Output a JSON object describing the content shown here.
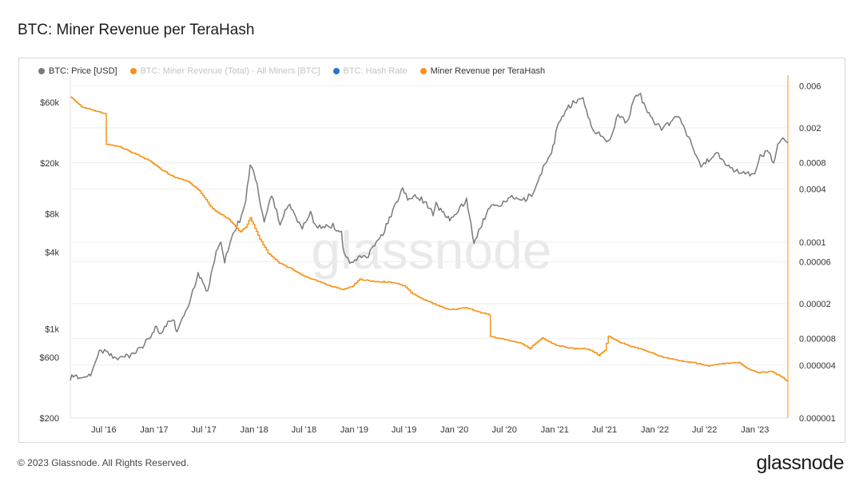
{
  "title": "BTC: Miner Revenue per TeraHash",
  "footer": "© 2023 Glassnode. All Rights Reserved.",
  "brand": "glassnode",
  "watermark": "glassnode",
  "colors": {
    "price": "#7a7a7a",
    "revenue_total": "#f7931a",
    "hash_rate": "#1f77d0",
    "revenue_per_th": "#f7931a",
    "grid": "#eeeeee",
    "right_axis": "#f7931a"
  },
  "legend": [
    {
      "label": "BTC: Price [USD]",
      "color": "#7a7a7a",
      "active": true
    },
    {
      "label": "BTC: Miner Revenue (Total) - All Miners [BTC]",
      "color": "#f7931a",
      "active": false
    },
    {
      "label": "BTC: Hash Rate",
      "color": "#1f77d0",
      "active": false
    },
    {
      "label": "Miner Revenue per TeraHash",
      "color": "#f7931a",
      "active": true
    }
  ],
  "chart_data": {
    "type": "line",
    "title": "BTC: Miner Revenue per TeraHash",
    "xlabel": "",
    "ylabel_left": "",
    "ylabel_right": "",
    "x_ticks": [
      "Jul '16",
      "Jan '17",
      "Jul '17",
      "Jan '18",
      "Jul '18",
      "Jan '19",
      "Jul '19",
      "Jan '20",
      "Jul '20",
      "Jan '21",
      "Jul '21",
      "Jan '22",
      "Jul '22",
      "Jan '23"
    ],
    "x_range": [
      "2016-03",
      "2023-05"
    ],
    "left_axis": {
      "scale": "log",
      "range": [
        200,
        90000
      ],
      "ticks": [
        200,
        600,
        1000,
        4000,
        8000,
        20000,
        60000
      ],
      "tick_labels": [
        "$200",
        "$600",
        "$1k",
        "$4k",
        "$8k",
        "$20k",
        "$60k"
      ]
    },
    "right_axis": {
      "scale": "log",
      "range": [
        1e-06,
        0.007
      ],
      "ticks": [
        1e-06,
        4e-06,
        8e-06,
        2e-05,
        6e-05,
        0.0001,
        0.0004,
        0.0008,
        0.002,
        0.006
      ],
      "tick_labels": [
        "0.000001",
        "0.000004",
        "0.000008",
        "0.00002",
        "0.00006",
        "0.0001",
        "0.0004",
        "0.0008",
        "0.002",
        "0.006"
      ]
    },
    "grid": true,
    "legend_position": "top-left",
    "series": [
      {
        "name": "BTC: Price [USD]",
        "axis": "left",
        "points": [
          [
            "2016-03-01",
            415
          ],
          [
            "2016-04-15",
            430
          ],
          [
            "2016-05-20",
            450
          ],
          [
            "2016-06-15",
            680
          ],
          [
            "2016-07-10",
            660
          ],
          [
            "2016-08-15",
            580
          ],
          [
            "2016-09-15",
            605
          ],
          [
            "2016-10-20",
            640
          ],
          [
            "2016-11-20",
            730
          ],
          [
            "2016-12-20",
            880
          ],
          [
            "2017-01-05",
            1050
          ],
          [
            "2017-01-20",
            910
          ],
          [
            "2017-02-20",
            1100
          ],
          [
            "2017-03-10",
            1220
          ],
          [
            "2017-03-25",
            950
          ],
          [
            "2017-04-20",
            1250
          ],
          [
            "2017-05-15",
            1800
          ],
          [
            "2017-06-10",
            2700
          ],
          [
            "2017-07-15",
            1950
          ],
          [
            "2017-08-15",
            4100
          ],
          [
            "2017-09-01",
            4800
          ],
          [
            "2017-09-15",
            3400
          ],
          [
            "2017-10-15",
            5700
          ],
          [
            "2017-11-15",
            7500
          ],
          [
            "2017-12-01",
            10500
          ],
          [
            "2017-12-17",
            19000
          ],
          [
            "2018-01-05",
            15500
          ],
          [
            "2018-02-06",
            7000
          ],
          [
            "2018-03-05",
            11000
          ],
          [
            "2018-04-05",
            6800
          ],
          [
            "2018-05-05",
            9600
          ],
          [
            "2018-06-25",
            6100
          ],
          [
            "2018-07-25",
            8200
          ],
          [
            "2018-08-15",
            6300
          ],
          [
            "2018-10-15",
            6500
          ],
          [
            "2018-11-15",
            5600
          ],
          [
            "2018-11-25",
            3800
          ],
          [
            "2018-12-15",
            3300
          ],
          [
            "2019-01-15",
            3600
          ],
          [
            "2019-02-15",
            3700
          ],
          [
            "2019-04-03",
            5000
          ],
          [
            "2019-05-15",
            7800
          ],
          [
            "2019-06-26",
            12500
          ],
          [
            "2019-07-20",
            10200
          ],
          [
            "2019-08-10",
            11500
          ],
          [
            "2019-09-20",
            9600
          ],
          [
            "2019-10-15",
            8100
          ],
          [
            "2019-10-26",
            9500
          ],
          [
            "2019-12-15",
            7100
          ],
          [
            "2020-02-14",
            10300
          ],
          [
            "2020-03-12",
            4900
          ],
          [
            "2020-04-15",
            7000
          ],
          [
            "2020-05-15",
            9600
          ],
          [
            "2020-06-15",
            9400
          ],
          [
            "2020-07-28",
            11000
          ],
          [
            "2020-09-05",
            10100
          ],
          [
            "2020-10-20",
            12000
          ],
          [
            "2020-11-20",
            18500
          ],
          [
            "2020-12-20",
            23500
          ],
          [
            "2021-01-10",
            38000
          ],
          [
            "2021-02-20",
            55000
          ],
          [
            "2021-03-14",
            61000
          ],
          [
            "2021-04-14",
            63000
          ],
          [
            "2021-05-20",
            37000
          ],
          [
            "2021-06-22",
            32000
          ],
          [
            "2021-07-20",
            30000
          ],
          [
            "2021-08-20",
            48000
          ],
          [
            "2021-09-21",
            41000
          ],
          [
            "2021-10-20",
            65000
          ],
          [
            "2021-11-10",
            67500
          ],
          [
            "2021-12-05",
            49000
          ],
          [
            "2022-01-25",
            36500
          ],
          [
            "2022-03-28",
            47000
          ],
          [
            "2022-05-10",
            30000
          ],
          [
            "2022-06-18",
            19000
          ],
          [
            "2022-08-14",
            24400
          ],
          [
            "2022-09-15",
            19700
          ],
          [
            "2022-11-09",
            16500
          ],
          [
            "2022-12-31",
            16600
          ],
          [
            "2023-01-20",
            22800
          ],
          [
            "2023-02-20",
            24500
          ],
          [
            "2023-03-10",
            20000
          ],
          [
            "2023-03-25",
            28000
          ],
          [
            "2023-04-14",
            30400
          ],
          [
            "2023-05-01",
            28800
          ]
        ]
      },
      {
        "name": "Miner Revenue per TeraHash",
        "axis": "right",
        "points": [
          [
            "2016-03-01",
            0.0045
          ],
          [
            "2016-04-15",
            0.0034
          ],
          [
            "2016-06-01",
            0.0031
          ],
          [
            "2016-07-09",
            0.0029
          ],
          [
            "2016-07-10",
            0.0013
          ],
          [
            "2016-09-01",
            0.0012
          ],
          [
            "2016-11-01",
            0.00098
          ],
          [
            "2016-12-20",
            0.00082
          ],
          [
            "2017-02-01",
            0.00065
          ],
          [
            "2017-03-15",
            0.00055
          ],
          [
            "2017-05-01",
            0.0005
          ],
          [
            "2017-06-15",
            0.00038
          ],
          [
            "2017-08-01",
            0.00024
          ],
          [
            "2017-10-01",
            0.00018
          ],
          [
            "2017-11-10",
            0.00013
          ],
          [
            "2017-12-01",
            0.00015
          ],
          [
            "2017-12-17",
            0.00019
          ],
          [
            "2018-01-20",
            0.00011
          ],
          [
            "2018-02-20",
            7.5e-05
          ],
          [
            "2018-04-01",
            5.8e-05
          ],
          [
            "2018-05-15",
            5e-05
          ],
          [
            "2018-07-01",
            4.1e-05
          ],
          [
            "2018-08-20",
            3.6e-05
          ],
          [
            "2018-10-01",
            3.2e-05
          ],
          [
            "2018-11-20",
            2.9e-05
          ],
          [
            "2018-12-20",
            3.1e-05
          ],
          [
            "2019-01-20",
            3.8e-05
          ],
          [
            "2019-03-01",
            3.6e-05
          ],
          [
            "2019-05-15",
            3.5e-05
          ],
          [
            "2019-06-30",
            3.2e-05
          ],
          [
            "2019-08-01",
            2.6e-05
          ],
          [
            "2019-09-15",
            2.2e-05
          ],
          [
            "2019-11-01",
            1.9e-05
          ],
          [
            "2019-12-15",
            1.7e-05
          ],
          [
            "2020-02-15",
            1.8e-05
          ],
          [
            "2020-04-01",
            1.6e-05
          ],
          [
            "2020-05-10",
            1.5e-05
          ],
          [
            "2020-05-11",
            8.5e-06
          ],
          [
            "2020-07-01",
            7.8e-06
          ],
          [
            "2020-09-01",
            7.1e-06
          ],
          [
            "2020-10-01",
            6.2e-06
          ],
          [
            "2020-11-15",
            8.2e-06
          ],
          [
            "2021-01-01",
            6.8e-06
          ],
          [
            "2021-03-01",
            6.2e-06
          ],
          [
            "2021-05-01",
            6.1e-06
          ],
          [
            "2021-06-10",
            5.2e-06
          ],
          [
            "2021-07-01",
            5.8e-06
          ],
          [
            "2021-07-15",
            8.5e-06
          ],
          [
            "2021-08-15",
            7.5e-06
          ],
          [
            "2021-10-01",
            6.6e-06
          ],
          [
            "2021-12-01",
            5.8e-06
          ],
          [
            "2022-02-01",
            4.9e-06
          ],
          [
            "2022-04-01",
            4.5e-06
          ],
          [
            "2022-06-01",
            4.2e-06
          ],
          [
            "2022-07-15",
            3.9e-06
          ],
          [
            "2022-09-15",
            4.2e-06
          ],
          [
            "2022-11-01",
            4.3e-06
          ],
          [
            "2022-12-15",
            3.5e-06
          ],
          [
            "2023-01-15",
            3.3e-06
          ],
          [
            "2023-03-01",
            3.4e-06
          ],
          [
            "2023-04-01",
            3e-06
          ],
          [
            "2023-05-01",
            2.6e-06
          ]
        ]
      }
    ]
  }
}
